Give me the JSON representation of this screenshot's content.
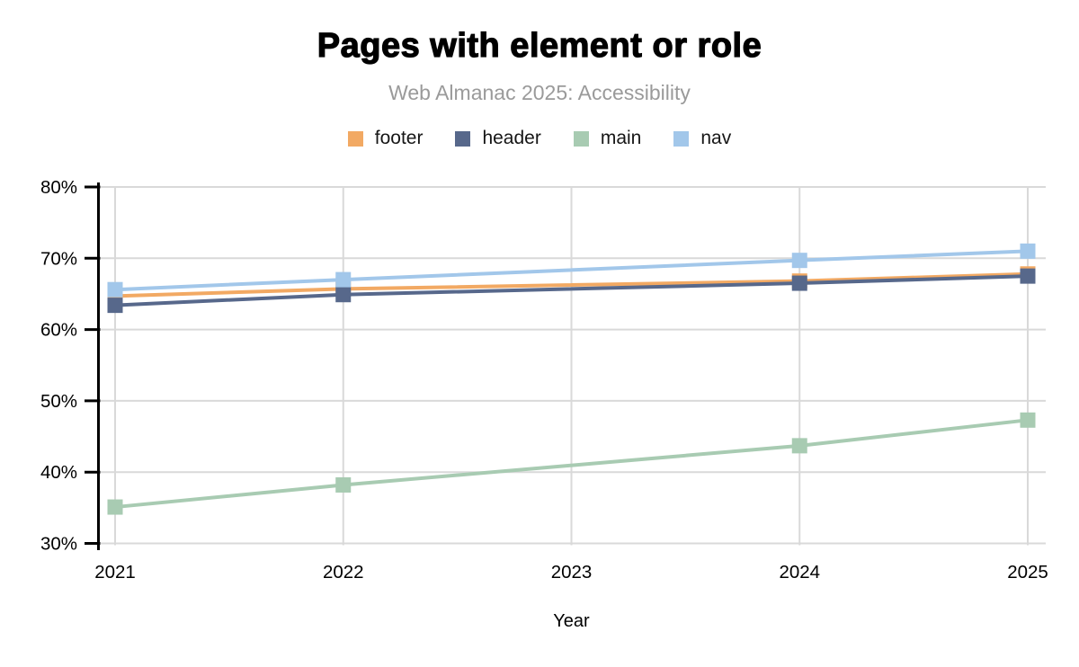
{
  "header": {
    "title": "Pages with element or role",
    "subtitle": "Web Almanac 2025: Accessibility"
  },
  "chart_data": {
    "type": "line",
    "title": "Pages with element or role",
    "subtitle": "Web Almanac 2025: Accessibility",
    "x": [
      2021,
      2022,
      2024,
      2025
    ],
    "x_axis_ticks": [
      "2021",
      "2022",
      "2023",
      "2024",
      "2025"
    ],
    "y_axis_ticks": [
      "80%",
      "70%",
      "60%",
      "50%",
      "40%",
      "30%"
    ],
    "y_tick_values": [
      80,
      70,
      60,
      50,
      40,
      30
    ],
    "xlabel": "Year",
    "ylabel": "",
    "ylim": [
      30,
      80
    ],
    "x_range": [
      2021,
      2025
    ],
    "grid": true,
    "legend_position": "top",
    "marker": "square",
    "series": [
      {
        "name": "footer",
        "color": "#F2A963",
        "values": [
          64.7,
          65.7,
          66.8,
          67.8
        ]
      },
      {
        "name": "header",
        "color": "#57688B",
        "values": [
          63.4,
          64.9,
          66.5,
          67.5
        ]
      },
      {
        "name": "main",
        "color": "#A8CBB2",
        "values": [
          35.1,
          38.2,
          43.7,
          47.3
        ]
      },
      {
        "name": "nav",
        "color": "#A2C7EA",
        "values": [
          65.6,
          67.0,
          69.7,
          71.0
        ]
      }
    ],
    "colors": {
      "grid": "#D9D9D9",
      "axis": "#000000",
      "title": "#000000",
      "subtitle": "#9A9A9A",
      "tick_labels": "#000000"
    }
  }
}
